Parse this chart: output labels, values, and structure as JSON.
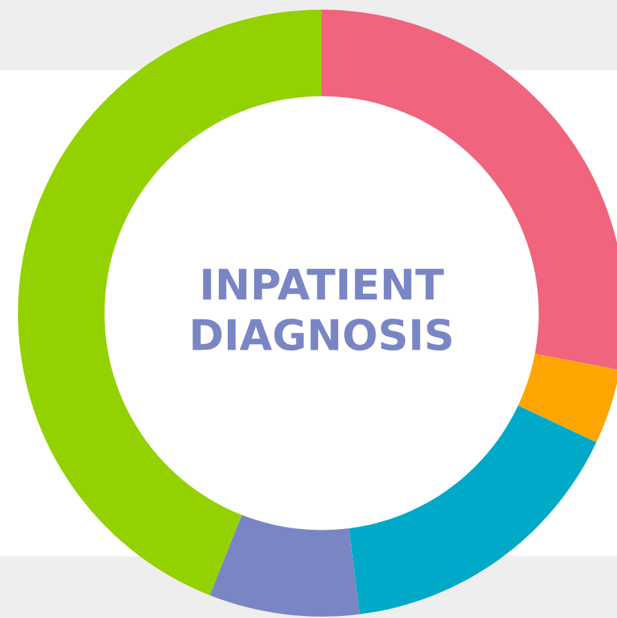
{
  "chart_data": {
    "type": "donut",
    "title": "INPATIENT\nDIAGNOSIS",
    "categories": [
      null,
      null,
      null,
      null,
      null
    ],
    "values": [
      28,
      4,
      16,
      8,
      44
    ],
    "colors": [
      "#f0647e",
      "#ffa500",
      "#00a9c7",
      "#7a86c4",
      "#94d100"
    ]
  }
}
